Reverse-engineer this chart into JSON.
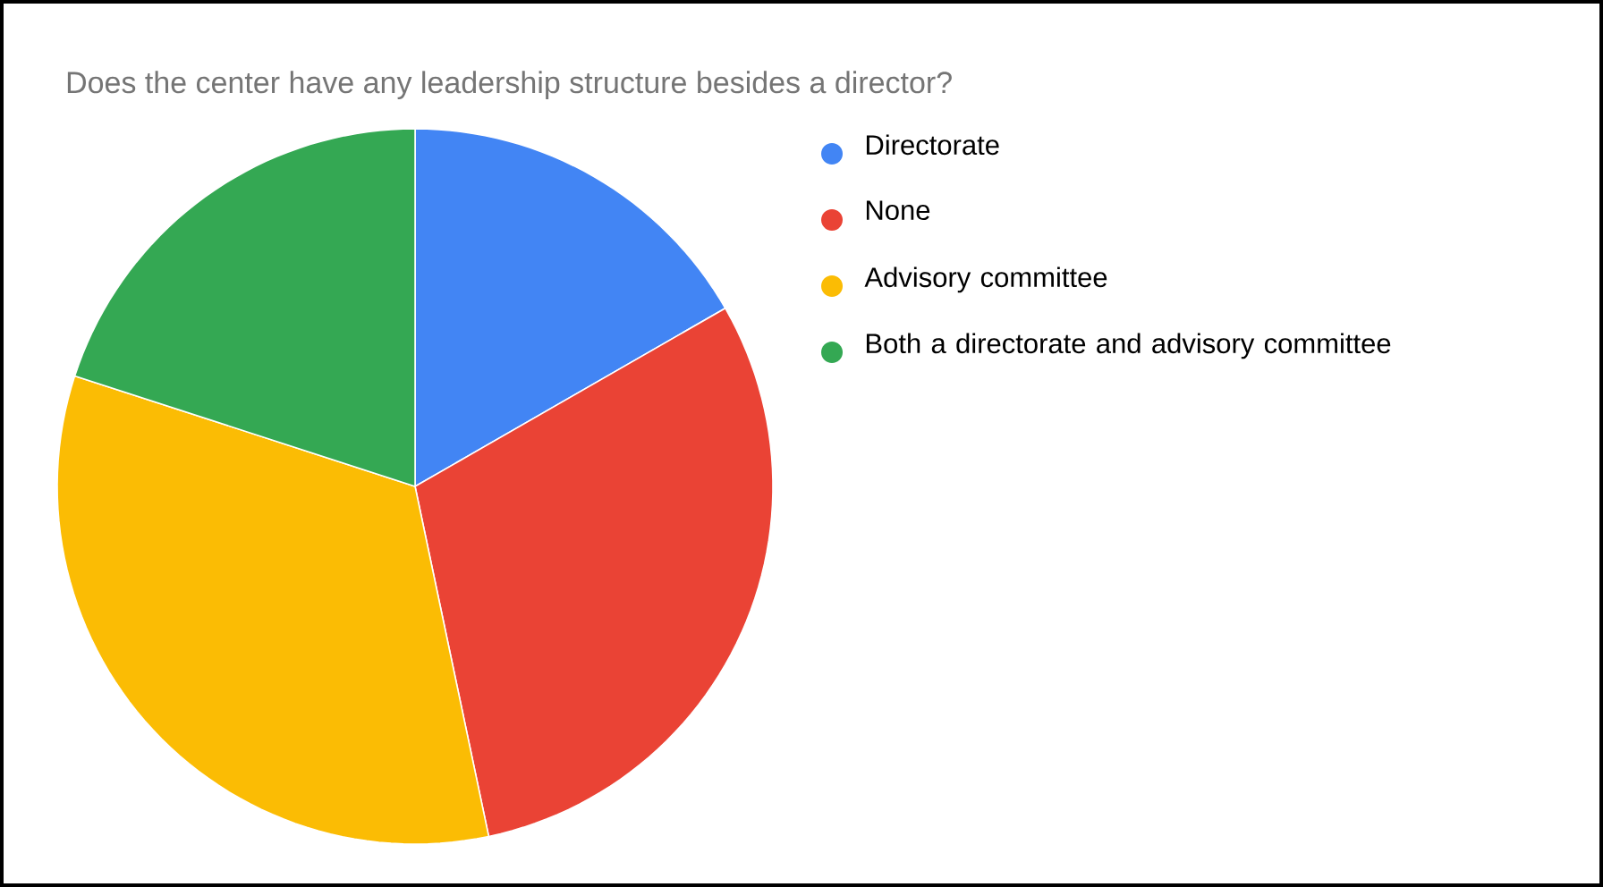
{
  "chart_data": {
    "type": "pie",
    "title": "Does the center have any leadership structure besides a director?",
    "categories": [
      "Directorate",
      "None",
      "Advisory committee",
      "Both a directorate and advisory committee"
    ],
    "values": [
      16.7,
      30,
      33.3,
      20
    ],
    "colors": [
      "#4285f4",
      "#ea4335",
      "#fbbc04",
      "#34a853"
    ],
    "legend": "right"
  }
}
